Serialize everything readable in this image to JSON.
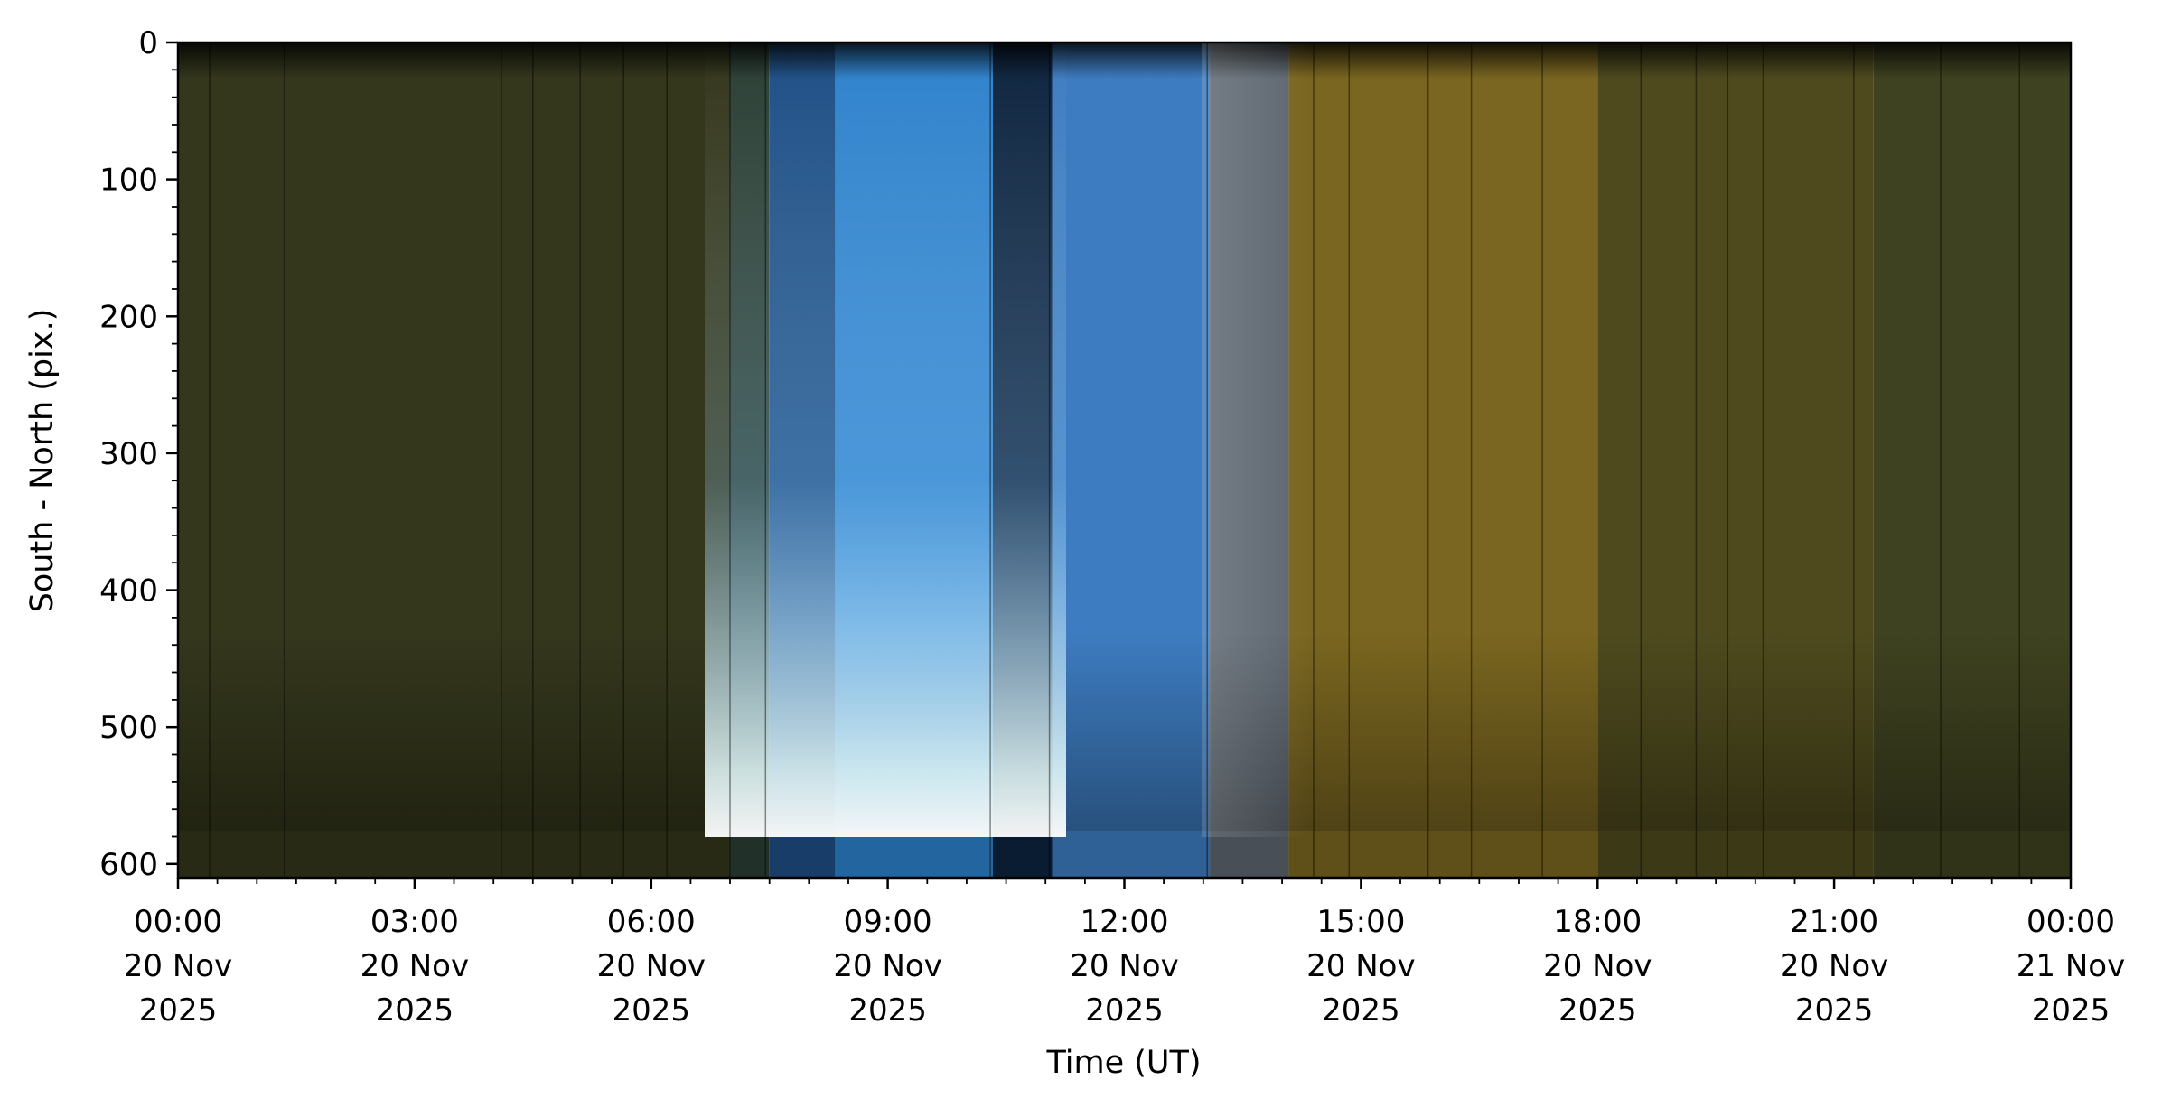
{
  "chart_data": {
    "type": "heatmap",
    "title": "",
    "xlabel": "Time (UT)",
    "ylabel": "South - North (pix.)",
    "xlim": [
      "2025-11-20 00:00",
      "2025-11-21 00:00"
    ],
    "ylim": [
      610,
      0
    ],
    "y_inverted": true,
    "grid": false,
    "x_ticks": [
      {
        "time": "2025-11-20 00:00",
        "label": [
          "00:00",
          "20 Nov",
          "2025"
        ]
      },
      {
        "time": "2025-11-20 03:00",
        "label": [
          "03:00",
          "20 Nov",
          "2025"
        ]
      },
      {
        "time": "2025-11-20 06:00",
        "label": [
          "06:00",
          "20 Nov",
          "2025"
        ]
      },
      {
        "time": "2025-11-20 09:00",
        "label": [
          "09:00",
          "20 Nov",
          "2025"
        ]
      },
      {
        "time": "2025-11-20 12:00",
        "label": [
          "12:00",
          "20 Nov",
          "2025"
        ]
      },
      {
        "time": "2025-11-20 15:00",
        "label": [
          "15:00",
          "20 Nov",
          "2025"
        ]
      },
      {
        "time": "2025-11-20 18:00",
        "label": [
          "18:00",
          "20 Nov",
          "2025"
        ]
      },
      {
        "time": "2025-11-20 21:00",
        "label": [
          "21:00",
          "20 Nov",
          "2025"
        ]
      },
      {
        "time": "2025-11-21 00:00",
        "label": [
          "00:00",
          "21 Nov",
          "2025"
        ]
      }
    ],
    "x_minor_tick_hours": [
      0.5,
      1,
      1.5,
      2,
      2.5,
      3.5,
      4,
      4.5,
      5,
      5.5,
      6.5,
      7,
      7.5,
      8,
      8.5,
      9.5,
      10,
      10.5,
      11,
      11.5,
      12.5,
      13,
      13.5,
      14,
      14.5,
      15.5,
      16,
      16.5,
      17,
      17.5,
      18.5,
      19,
      19.5,
      20,
      20.5,
      21.5,
      22,
      22.5,
      23,
      23.5
    ],
    "y_ticks": [
      0,
      100,
      200,
      300,
      400,
      500,
      600
    ],
    "y_minor_ticks": [
      20,
      40,
      60,
      80,
      120,
      140,
      160,
      180,
      220,
      240,
      260,
      280,
      320,
      340,
      360,
      380,
      420,
      440,
      460,
      480,
      520,
      540,
      560,
      580
    ],
    "y_tick_labels": [
      "0",
      "100",
      "200",
      "300",
      "400",
      "500",
      "600"
    ],
    "time_segments": [
      {
        "start": "2025-11-20 00:00",
        "end": "2025-11-20 07:00",
        "color": "#34371c"
      },
      {
        "start": "2025-11-20 07:00",
        "end": "2025-11-20 07:30",
        "color": "#2b3f35"
      },
      {
        "start": "2025-11-20 07:30",
        "end": "2025-11-20 08:20",
        "color": "#1e4f86"
      },
      {
        "start": "2025-11-20 08:20",
        "end": "2025-11-20 10:20",
        "color": "#2e82cc"
      },
      {
        "start": "2025-11-20 10:20",
        "end": "2025-11-20 11:05",
        "color": "#0d2440"
      },
      {
        "start": "2025-11-20 11:05",
        "end": "2025-11-20 13:05",
        "color": "#3d7cc0"
      },
      {
        "start": "2025-11-20 13:05",
        "end": "2025-11-20 14:05",
        "color": "#5d6670"
      },
      {
        "start": "2025-11-20 14:05",
        "end": "2025-11-20 18:00",
        "color": "#7a6620"
      },
      {
        "start": "2025-11-20 18:00",
        "end": "2025-11-20 21:30",
        "color": "#4e4a1e"
      },
      {
        "start": "2025-11-20 21:30",
        "end": "2025-11-21 00:00",
        "color": "#3f4220"
      }
    ],
    "colors": {
      "frame": "#000000",
      "background": "#ffffff"
    }
  }
}
